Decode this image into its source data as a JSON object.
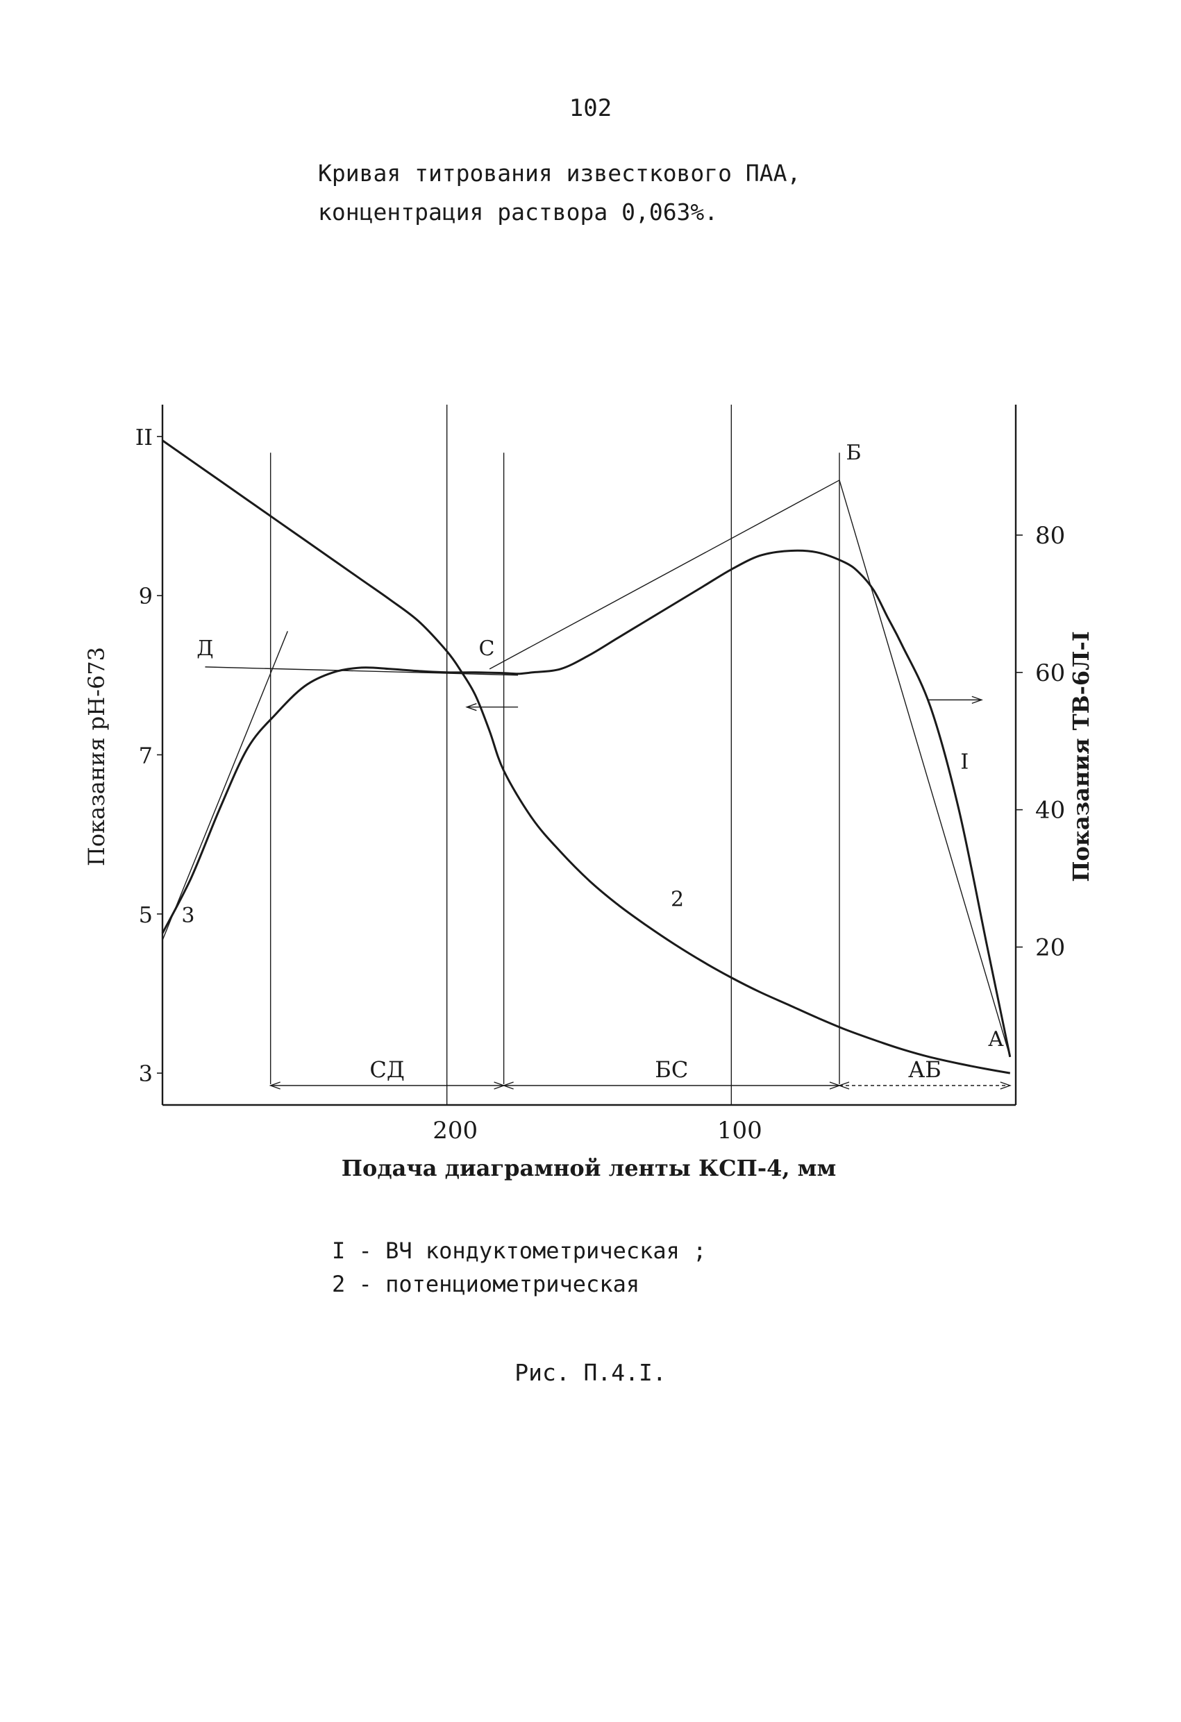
{
  "page": {
    "number": "102",
    "title_line1": "Кривая титрования известкового ПАА,",
    "title_line2": "концентрация раствора 0,063%.",
    "figure_label": "Рис. П.4.I."
  },
  "legend": {
    "item1": "I - ВЧ кондуктометрическая ;",
    "item2": "2 - потенциометрическая"
  },
  "chart_data": {
    "type": "line",
    "title": "",
    "xlabel": "Подача диаграмной ленты КСП-4, мм",
    "ylabel_left": "Показания рН-673",
    "ylabel_right": "Показания ТВ-6Л-I",
    "x_reversed": true,
    "xlim": [
      300,
      0
    ],
    "x_ticks": [
      200,
      100
    ],
    "x_tick_labels": [
      "200",
      "100"
    ],
    "y_left_lim": [
      2.6,
      11.4
    ],
    "y_left_ticks": [
      3,
      5,
      7,
      9,
      11
    ],
    "y_left_tick_labels": [
      "3",
      "5",
      "7",
      "9",
      "II"
    ],
    "y_right_lim": [
      -3,
      99
    ],
    "y_right_ticks": [
      20,
      40,
      60,
      80
    ],
    "y_right_tick_labels": [
      "20",
      "40",
      "60",
      "80"
    ],
    "vertical_gridlines_x": [
      200,
      100
    ],
    "series": [
      {
        "name": "I",
        "axis": "right",
        "x": [
          2,
          10,
          20,
          30,
          40,
          45,
          50,
          55,
          60,
          70,
          80,
          90,
          100,
          110,
          120,
          130,
          140,
          150,
          160,
          170,
          175,
          180,
          190,
          200,
          210,
          220,
          230,
          240,
          250,
          260,
          270,
          280,
          290,
          300
        ],
        "y": [
          4,
          20,
          40,
          55,
          64,
          68,
          72,
          74.5,
          76,
          77.5,
          77.7,
          77,
          75,
          72.5,
          70,
          67.5,
          65,
          62.5,
          60.5,
          60,
          59.8,
          59.9,
          60,
          60,
          60.2,
          60.5,
          60.7,
          60,
          58,
          54,
          49,
          40,
          30,
          22
        ]
      },
      {
        "name": "2",
        "axis": "left",
        "x": [
          2,
          10,
          20,
          30,
          40,
          50,
          60,
          70,
          80,
          90,
          100,
          110,
          120,
          130,
          140,
          150,
          160,
          170,
          180,
          185,
          190,
          195,
          200,
          210,
          220,
          230,
          240,
          250,
          260,
          270,
          280,
          290,
          300
        ],
        "y": [
          3.0,
          3.05,
          3.12,
          3.2,
          3.3,
          3.42,
          3.55,
          3.7,
          3.86,
          4.02,
          4.2,
          4.4,
          4.62,
          4.86,
          5.12,
          5.42,
          5.78,
          6.2,
          6.8,
          7.3,
          7.75,
          8.05,
          8.3,
          8.68,
          8.95,
          9.2,
          9.45,
          9.7,
          9.95,
          10.2,
          10.45,
          10.7,
          10.95
        ]
      }
    ],
    "point_labels": [
      "А",
      "Б",
      "С",
      "Д",
      "3",
      "I",
      "2"
    ],
    "segment_labels": [
      "СД",
      "БС",
      "АБ"
    ],
    "line_color": "#1a1a1a"
  }
}
